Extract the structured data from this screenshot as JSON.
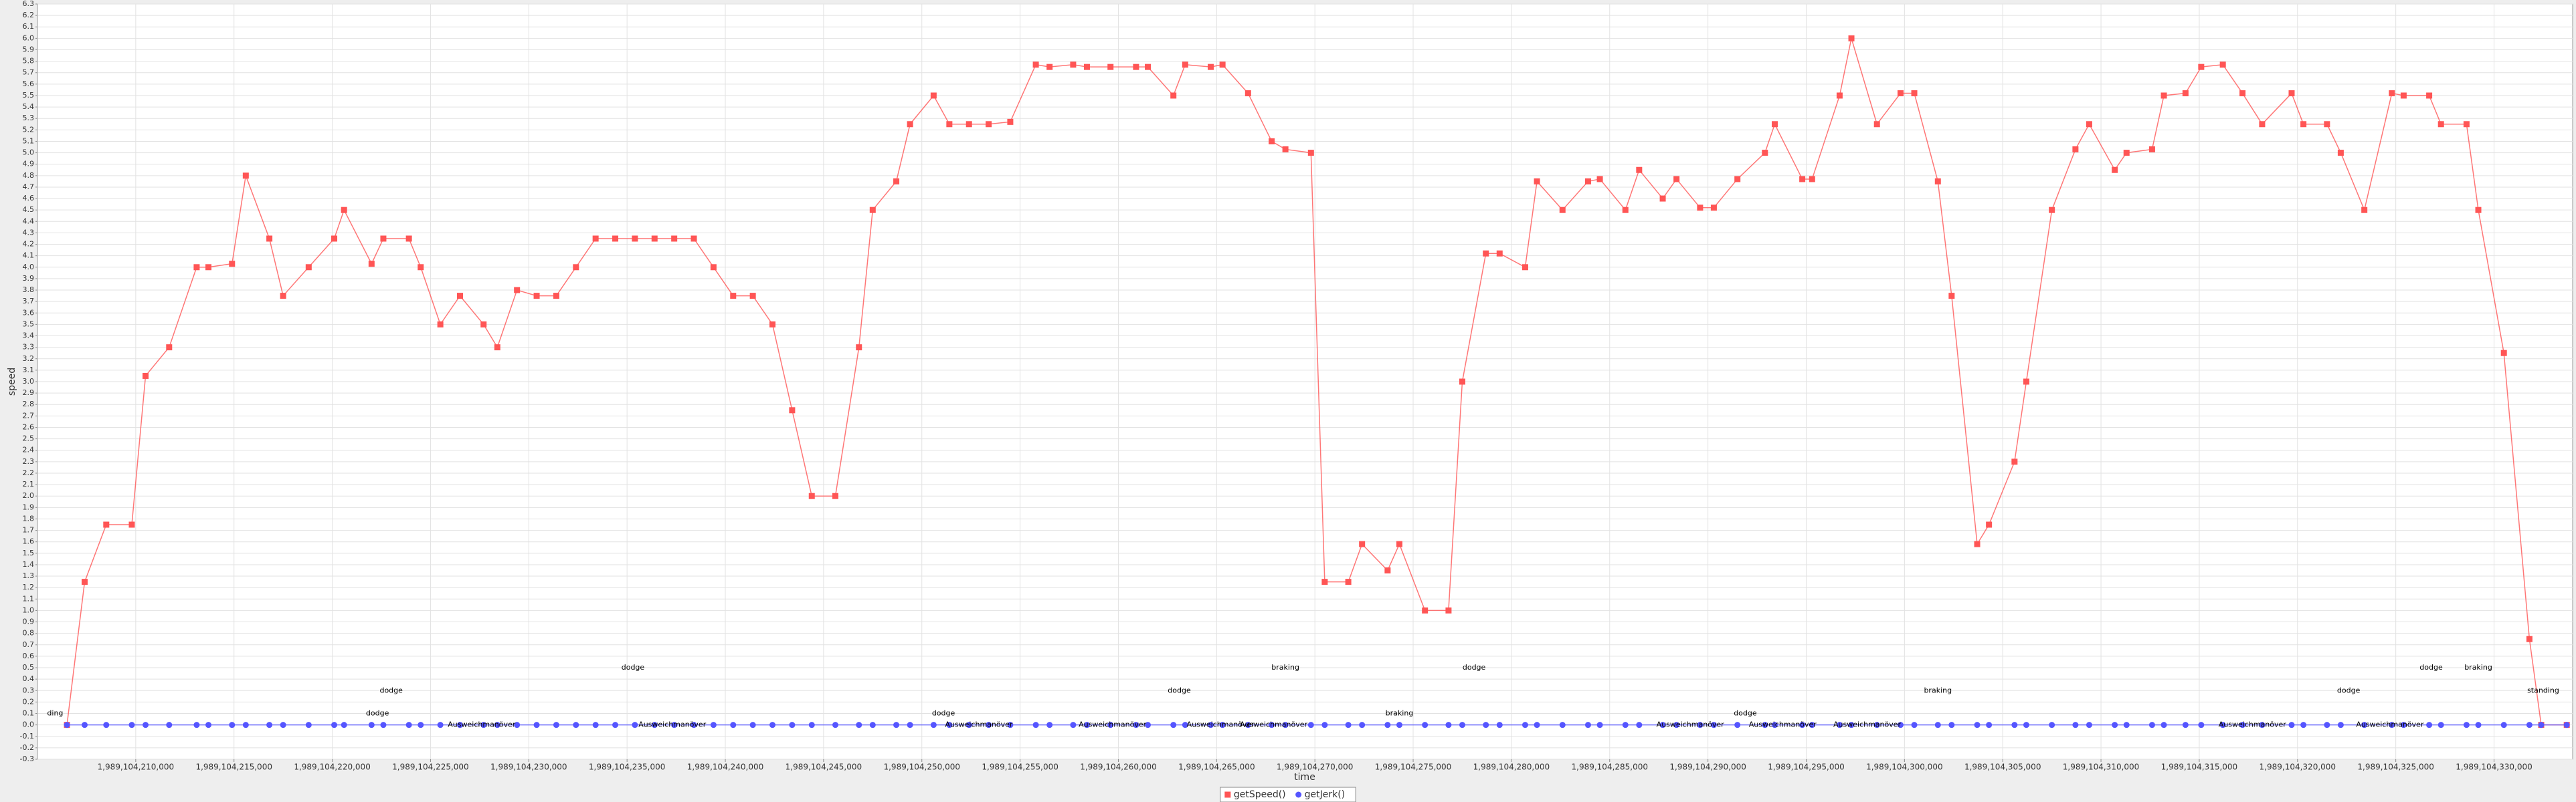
{
  "chart_data": {
    "type": "line",
    "x_label": "time",
    "y_label": "speed",
    "x": [
      1989104206500,
      1989104207400,
      1989104208500,
      1989104209800,
      1989104210500,
      1989104211700,
      1989104213100,
      1989104213700,
      1989104214900,
      1989104215600,
      1989104216800,
      1989104217500,
      1989104218800,
      1989104220100,
      1989104220600,
      1989104222000,
      1989104222600,
      1989104223900,
      1989104224500,
      1989104225500,
      1989104226500,
      1989104227700,
      1989104228400,
      1989104229400,
      1989104230400,
      1989104231400,
      1989104232400,
      1989104233400,
      1989104234400,
      1989104235400,
      1989104236400,
      1989104237400,
      1989104238400,
      1989104239400,
      1989104240400,
      1989104241400,
      1989104242400,
      1989104243400,
      1989104244400,
      1989104245600,
      1989104246800,
      1989104247500,
      1989104248700,
      1989104249400,
      1989104250600,
      1989104251400,
      1989104252400,
      1989104253400,
      1989104254500,
      1989104255800,
      1989104256500,
      1989104257700,
      1989104258400,
      1989104259600,
      1989104260900,
      1989104261500,
      1989104262800,
      1989104263400,
      1989104264700,
      1989104265300,
      1989104266600,
      1989104267800,
      1989104268500,
      1989104269800,
      1989104270500,
      1989104271700,
      1989104272400,
      1989104273700,
      1989104274300,
      1989104275600,
      1989104276800,
      1989104277500,
      1989104278700,
      1989104279400,
      1989104280700,
      1989104281300,
      1989104282600,
      1989104283900,
      1989104284500,
      1989104285800,
      1989104286500,
      1989104287700,
      1989104288400,
      1989104289600,
      1989104290300,
      1989104291500,
      1989104292900,
      1989104293400,
      1989104294800,
      1989104295300,
      1989104296700,
      1989104297300,
      1989104298600,
      1989104299800,
      1989104300500,
      1989104301700,
      1989104302400,
      1989104303700,
      1989104304300,
      1989104305600,
      1989104306200,
      1989104307500,
      1989104308700,
      1989104309400,
      1989104310700,
      1989104311300,
      1989104312600,
      1989104313200,
      1989104314300,
      1989104315100,
      1989104316200,
      1989104317200,
      1989104318200,
      1989104319700,
      1989104320300,
      1989104321500,
      1989104322200,
      1989104323400,
      1989104324800,
      1989104325400,
      1989104326700,
      1989104327300,
      1989104328600,
      1989104329200,
      1989104330500,
      1989104331800,
      1989104332400,
      1989104333700
    ],
    "series": [
      {
        "name": "getSpeed()",
        "color": "#ff5555",
        "marker": "square",
        "values": [
          0,
          1.25,
          1.75,
          1.75,
          3.05,
          3.3,
          4.0,
          4.0,
          4.03,
          4.8,
          4.25,
          3.75,
          4.0,
          4.25,
          4.5,
          4.03,
          4.25,
          4.25,
          4.0,
          3.5,
          3.75,
          3.5,
          3.3,
          3.8,
          3.75,
          3.75,
          4.0,
          4.25,
          4.25,
          4.25,
          4.25,
          4.25,
          4.25,
          4.0,
          3.75,
          3.75,
          3.5,
          2.75,
          2.0,
          2.0,
          3.3,
          4.5,
          4.75,
          5.25,
          5.5,
          5.25,
          5.25,
          5.25,
          5.27,
          5.77,
          5.75,
          5.77,
          5.75,
          5.75,
          5.75,
          5.75,
          5.5,
          5.77,
          5.75,
          5.77,
          5.52,
          5.1,
          5.03,
          5.0,
          1.25,
          1.25,
          1.58,
          1.35,
          1.58,
          1.0,
          1.0,
          3.0,
          4.12,
          4.12,
          4.0,
          4.75,
          4.5,
          4.75,
          4.77,
          4.5,
          4.85,
          4.6,
          4.77,
          4.52,
          4.52,
          4.77,
          5.0,
          5.25,
          4.77,
          4.77,
          5.5,
          6.0,
          5.25,
          5.52,
          5.52,
          4.75,
          3.75,
          1.58,
          1.75,
          2.3,
          3.0,
          4.5,
          5.03,
          5.25,
          4.85,
          5.0,
          5.03,
          5.5,
          5.52,
          5.75,
          5.77,
          5.52,
          5.25,
          5.52,
          5.25,
          5.25,
          5.0,
          4.5,
          5.52,
          5.5,
          5.5,
          5.25,
          5.25,
          4.5,
          3.25,
          0.75,
          0,
          0
        ]
      },
      {
        "name": "getJerk()",
        "color": "#5555ff",
        "marker": "circle",
        "values": [
          0,
          0,
          0,
          0,
          0,
          0,
          0,
          0,
          0,
          0,
          0,
          0,
          0,
          0,
          0,
          0,
          0,
          0,
          0,
          0,
          0,
          0,
          0,
          0,
          0,
          0,
          0,
          0,
          0,
          0,
          0,
          0,
          0,
          0,
          0,
          0,
          0,
          0,
          0,
          0,
          0,
          0,
          0,
          0,
          0,
          0,
          0,
          0,
          0,
          0,
          0,
          0,
          0,
          0,
          0,
          0,
          0,
          0,
          0,
          0,
          0,
          0,
          0,
          0,
          0,
          0,
          0,
          0,
          0,
          0,
          0,
          0,
          0,
          0,
          0,
          0,
          0,
          0,
          0,
          0,
          0,
          0,
          0,
          0,
          0,
          0,
          0,
          0,
          0,
          0,
          0,
          0,
          0,
          0,
          0,
          0,
          0,
          0,
          0,
          0,
          0,
          0,
          0,
          0,
          0,
          0,
          0,
          0,
          0,
          0,
          0,
          0,
          0,
          0,
          0,
          0,
          0,
          0,
          0,
          0,
          0,
          0,
          0,
          0,
          0,
          0,
          0,
          0
        ]
      }
    ],
    "annotations": [
      {
        "text": "ding",
        "x": 1989104205900,
        "y": 0.1
      },
      {
        "text": "dodge",
        "x": 1989104223000,
        "y": 0.3
      },
      {
        "text": "dodge",
        "x": 1989104222300,
        "y": 0.1
      },
      {
        "text": "Ausweichmanöver",
        "x": 1989104227600,
        "y": 0
      },
      {
        "text": "dodge",
        "x": 1989104235300,
        "y": 0.5
      },
      {
        "text": "Ausweichmanöver",
        "x": 1989104237300,
        "y": 0
      },
      {
        "text": "dodge",
        "x": 1989104251100,
        "y": 0.1
      },
      {
        "text": "Ausweichmanöver",
        "x": 1989104252900,
        "y": 0
      },
      {
        "text": "Ausweichmanöver",
        "x": 1989104259700,
        "y": 0
      },
      {
        "text": "dodge",
        "x": 1989104263100,
        "y": 0.3
      },
      {
        "text": "Ausweichmanöver",
        "x": 1989104265200,
        "y": 0
      },
      {
        "text": "Ausweichmanöver",
        "x": 1989104267900,
        "y": 0
      },
      {
        "text": "braking",
        "x": 1989104268500,
        "y": 0.5
      },
      {
        "text": "braking",
        "x": 1989104274300,
        "y": 0.1
      },
      {
        "text": "dodge",
        "x": 1989104278100,
        "y": 0.5
      },
      {
        "text": "Ausweichmanöver",
        "x": 1989104289100,
        "y": 0
      },
      {
        "text": "dodge",
        "x": 1989104291900,
        "y": 0.1
      },
      {
        "text": "Ausweichmanöver",
        "x": 1989104293800,
        "y": 0
      },
      {
        "text": "Ausweichmanöver",
        "x": 1989104298100,
        "y": 0
      },
      {
        "text": "braking",
        "x": 1989104301700,
        "y": 0.3
      },
      {
        "text": "Ausweichmanöver",
        "x": 1989104317700,
        "y": 0
      },
      {
        "text": "dodge",
        "x": 1989104322600,
        "y": 0.3
      },
      {
        "text": "Ausweichmanöver",
        "x": 1989104324700,
        "y": 0
      },
      {
        "text": "dodge",
        "x": 1989104326800,
        "y": 0.5
      },
      {
        "text": "braking",
        "x": 1989104329200,
        "y": 0.5
      },
      {
        "text": "standing",
        "x": 1989104332500,
        "y": 0.3
      }
    ],
    "xlim": [
      1989104205000,
      1989104334000
    ],
    "xticks": [
      {
        "value": 1989104210000,
        "label": "1,989,104,210,000"
      },
      {
        "value": 1989104215000,
        "label": "1,989,104,215,000"
      },
      {
        "value": 1989104220000,
        "label": "1,989,104,220,000"
      },
      {
        "value": 1989104225000,
        "label": "1,989,104,225,000"
      },
      {
        "value": 1989104230000,
        "label": "1,989,104,230,000"
      },
      {
        "value": 1989104235000,
        "label": "1,989,104,235,000"
      },
      {
        "value": 1989104240000,
        "label": "1,989,104,240,000"
      },
      {
        "value": 1989104245000,
        "label": "1,989,104,245,000"
      },
      {
        "value": 1989104250000,
        "label": "1,989,104,250,000"
      },
      {
        "value": 1989104255000,
        "label": "1,989,104,255,000"
      },
      {
        "value": 1989104260000,
        "label": "1,989,104,260,000"
      },
      {
        "value": 1989104265000,
        "label": "1,989,104,265,000"
      },
      {
        "value": 1989104270000,
        "label": "1,989,104,270,000"
      },
      {
        "value": 1989104275000,
        "label": "1,989,104,275,000"
      },
      {
        "value": 1989104280000,
        "label": "1,989,104,280,000"
      },
      {
        "value": 1989104285000,
        "label": "1,989,104,285,000"
      },
      {
        "value": 1989104290000,
        "label": "1,989,104,290,000"
      },
      {
        "value": 1989104295000,
        "label": "1,989,104,295,000"
      },
      {
        "value": 1989104300000,
        "label": "1,989,104,300,000"
      },
      {
        "value": 1989104305000,
        "label": "1,989,104,305,000"
      },
      {
        "value": 1989104310000,
        "label": "1,989,104,310,000"
      },
      {
        "value": 1989104315000,
        "label": "1,989,104,315,000"
      },
      {
        "value": 1989104320000,
        "label": "1,989,104,320,000"
      },
      {
        "value": 1989104325000,
        "label": "1,989,104,325,000"
      },
      {
        "value": 1989104330000,
        "label": "1,989,104,330,000"
      }
    ],
    "ylim": [
      -0.3,
      6.3
    ],
    "yticks": [
      -0.3,
      -0.2,
      -0.1,
      {
        "value": 0,
        "label": "0.0"
      },
      0.1,
      0.2,
      0.3,
      0.4,
      0.5,
      0.6,
      0.7,
      0.8,
      0.9,
      {
        "value": 1,
        "label": "1.0"
      },
      1.1,
      1.2,
      1.3,
      1.4,
      1.5,
      1.6,
      1.7,
      1.8,
      1.9,
      {
        "value": 2,
        "label": "2.0"
      },
      2.1,
      2.2,
      2.3,
      2.4,
      2.5,
      2.6,
      2.7,
      2.8,
      2.9,
      {
        "value": 3,
        "label": "3.0"
      },
      3.1,
      3.2,
      3.3,
      3.4,
      3.5,
      3.6,
      3.7,
      3.8,
      3.9,
      {
        "value": 4,
        "label": "4.0"
      },
      4.1,
      4.2,
      4.3,
      4.4,
      4.5,
      4.6,
      4.7,
      4.8,
      4.9,
      {
        "value": 5,
        "label": "5.0"
      },
      5.1,
      5.2,
      5.3,
      5.4,
      5.5,
      5.6,
      5.7,
      5.8,
      5.9,
      {
        "value": 6,
        "label": "6.0"
      },
      6.1,
      6.2,
      6.3
    ],
    "grid": true,
    "legend": "bottom"
  }
}
